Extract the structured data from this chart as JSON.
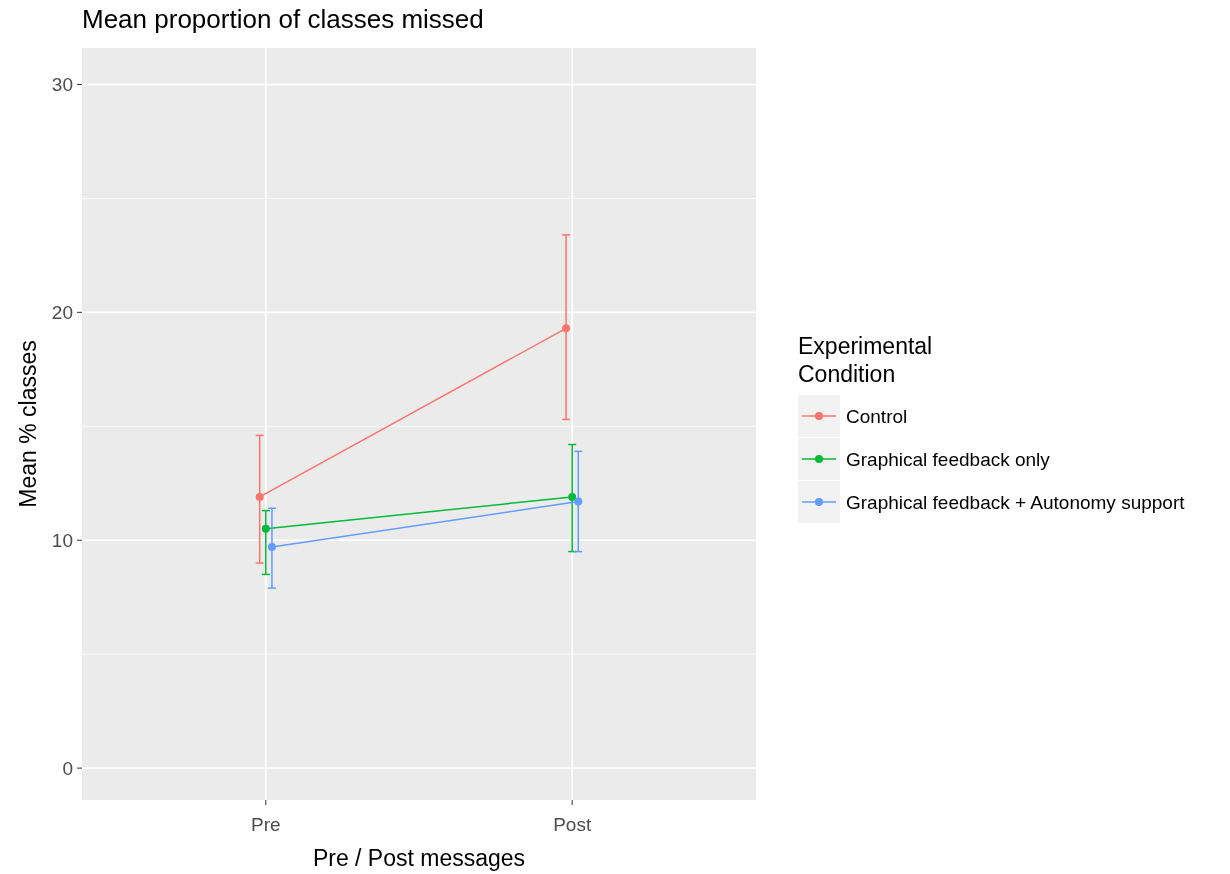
{
  "chart_data": {
    "type": "line",
    "title": "Mean proportion of classes missed",
    "xlabel": "Pre / Post messages",
    "ylabel": "Mean % classes",
    "legend_title": "Experimental\nCondition",
    "categories": [
      "Pre",
      "Post"
    ],
    "series": [
      {
        "name": "Control",
        "color": "#f8766d",
        "values": [
          11.9,
          19.3
        ],
        "errors": [
          [
            9.0,
            14.6
          ],
          [
            15.3,
            23.4
          ]
        ]
      },
      {
        "name": "Graphical feedback only",
        "color": "#00ba38",
        "values": [
          10.5,
          11.9
        ],
        "errors": [
          [
            8.5,
            11.3
          ],
          [
            9.5,
            14.2
          ]
        ]
      },
      {
        "name": "Graphical feedback + Autonomy support",
        "color": "#619cff",
        "values": [
          9.7,
          11.7
        ],
        "errors": [
          [
            7.9,
            11.4
          ],
          [
            9.5,
            13.9
          ]
        ]
      }
    ],
    "ylim": [
      -1.4,
      31.6
    ],
    "yticks": [
      0,
      10,
      20,
      30
    ],
    "grid": true,
    "legend": "right",
    "marker": "circle"
  }
}
